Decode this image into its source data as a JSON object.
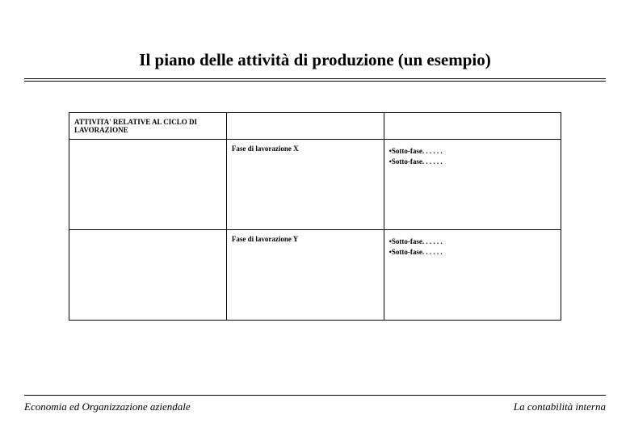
{
  "title": "Il piano delle attività di produzione (un esempio)",
  "table": {
    "header_cell": "ATTIVITA' RELATIVE AL CICLO DI LAVORAZIONE",
    "rows": [
      {
        "phase": "Fase di lavorazione X",
        "sub1": "•Sotto-fase. . . . . .",
        "sub2": "•Sotto-fase. . . . . ."
      },
      {
        "phase": "Fase di lavorazione Y",
        "sub1": "•Sotto-fase. . . . . .",
        "sub2": "•Sotto-fase. . . . . ."
      }
    ]
  },
  "footer": {
    "left": "Economia ed Organizzazione aziendale",
    "right": "La contabilità interna"
  }
}
